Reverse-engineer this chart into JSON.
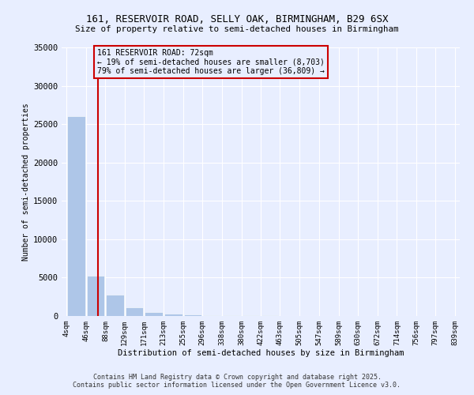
{
  "title1": "161, RESERVOIR ROAD, SELLY OAK, BIRMINGHAM, B29 6SX",
  "title2": "Size of property relative to semi-detached houses in Birmingham",
  "xlabel": "Distribution of semi-detached houses by size in Birmingham",
  "ylabel": "Number of semi-detached properties",
  "annotation_title": "161 RESERVOIR ROAD: 72sqm",
  "annotation_line1": "← 19% of semi-detached houses are smaller (8,703)",
  "annotation_line2": "79% of semi-detached houses are larger (36,809) →",
  "property_size": 72,
  "footer1": "Contains HM Land Registry data © Crown copyright and database right 2025.",
  "footer2": "Contains public sector information licensed under the Open Government Licence v3.0.",
  "bin_labels": [
    "4sqm",
    "46sqm",
    "88sqm",
    "129sqm",
    "171sqm",
    "213sqm",
    "255sqm",
    "296sqm",
    "338sqm",
    "380sqm",
    "422sqm",
    "463sqm",
    "505sqm",
    "547sqm",
    "589sqm",
    "630sqm",
    "672sqm",
    "714sqm",
    "756sqm",
    "797sqm",
    "839sqm"
  ],
  "bin_edges": [
    4,
    46,
    88,
    129,
    171,
    213,
    255,
    296,
    338,
    380,
    422,
    463,
    505,
    547,
    589,
    630,
    672,
    714,
    756,
    797,
    839
  ],
  "bar_values": [
    26000,
    5300,
    2800,
    1100,
    500,
    300,
    180,
    130,
    100,
    80,
    60,
    40,
    30,
    25,
    20,
    15,
    12,
    10,
    8,
    6
  ],
  "bar_color": "#aec6e8",
  "line_color": "#cc0000",
  "annotation_box_color": "#cc0000",
  "background_color": "#e8eeff",
  "ylim": [
    0,
    35000
  ],
  "yticks": [
    0,
    5000,
    10000,
    15000,
    20000,
    25000,
    30000,
    35000
  ]
}
